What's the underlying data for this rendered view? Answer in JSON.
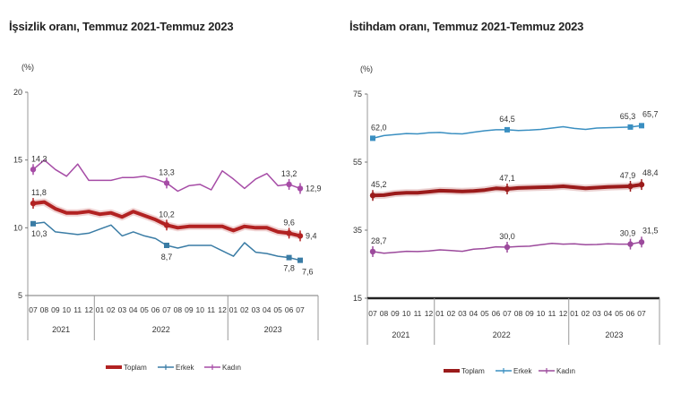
{
  "chart_data": [
    {
      "type": "line",
      "title": "İşsizlik oranı, Temmuz 2021-Temmuz 2023",
      "ylabel": "(%)",
      "xlabel": "",
      "ylim": [
        5,
        20
      ],
      "yticks": [
        5,
        10,
        15,
        20
      ],
      "grid": false,
      "legend_position": "bottom",
      "x": [
        "07",
        "08",
        "09",
        "10",
        "11",
        "12",
        "01",
        "02",
        "03",
        "04",
        "05",
        "06",
        "07",
        "08",
        "09",
        "10",
        "11",
        "12",
        "01",
        "02",
        "03",
        "04",
        "05",
        "06",
        "07"
      ],
      "year_groups": [
        {
          "label": "2021",
          "count": 6
        },
        {
          "label": "2022",
          "count": 12
        },
        {
          "label": "2023",
          "count": 7
        }
      ],
      "series": [
        {
          "name": "Toplam",
          "color": "#b22222",
          "values": [
            11.8,
            11.9,
            11.4,
            11.1,
            11.1,
            11.2,
            11.0,
            11.1,
            10.8,
            11.2,
            10.9,
            10.6,
            10.2,
            10.0,
            10.1,
            10.1,
            10.1,
            10.1,
            9.8,
            10.1,
            10.0,
            10.0,
            9.7,
            9.6,
            9.4
          ],
          "labels": [
            {
              "index": 0,
              "text": "11,8"
            },
            {
              "index": 12,
              "text": "10,2"
            },
            {
              "index": 23,
              "text": "9,6"
            },
            {
              "index": 24,
              "text": "9,4"
            }
          ]
        },
        {
          "name": "Erkek",
          "color": "#3a7ca5",
          "values": [
            10.3,
            10.4,
            9.7,
            9.6,
            9.5,
            9.6,
            9.9,
            10.2,
            9.4,
            9.7,
            9.4,
            9.2,
            8.7,
            8.5,
            8.7,
            8.7,
            8.7,
            8.3,
            7.9,
            8.9,
            8.2,
            8.1,
            7.9,
            7.8,
            7.6
          ],
          "labels": [
            {
              "index": 0,
              "text": "10,3"
            },
            {
              "index": 12,
              "text": "8,7"
            },
            {
              "index": 23,
              "text": "7,8"
            },
            {
              "index": 24,
              "text": "7,6"
            }
          ]
        },
        {
          "name": "Kadın",
          "color": "#a64ca6",
          "values": [
            14.3,
            15.0,
            14.3,
            13.8,
            14.7,
            13.5,
            13.5,
            13.5,
            13.7,
            13.7,
            13.8,
            13.6,
            13.3,
            12.7,
            13.1,
            13.2,
            12.8,
            14.2,
            13.6,
            12.9,
            13.6,
            14.0,
            13.1,
            13.2,
            12.9
          ],
          "labels": [
            {
              "index": 0,
              "text": "14,3"
            },
            {
              "index": 12,
              "text": "13,3"
            },
            {
              "index": 23,
              "text": "13,2"
            },
            {
              "index": 24,
              "text": "12,9"
            }
          ]
        }
      ]
    },
    {
      "type": "line",
      "title": "İstihdam oranı, Temmuz 2021-Temmuz 2023",
      "ylabel": "(%)",
      "xlabel": "",
      "ylim": [
        15,
        75
      ],
      "yticks": [
        15,
        35,
        55,
        75
      ],
      "grid": false,
      "legend_position": "bottom",
      "x": [
        "07",
        "08",
        "09",
        "10",
        "11",
        "12",
        "01",
        "02",
        "03",
        "04",
        "05",
        "06",
        "07",
        "08",
        "09",
        "10",
        "11",
        "12",
        "01",
        "02",
        "03",
        "04",
        "05",
        "06",
        "07"
      ],
      "year_groups": [
        {
          "label": "2021",
          "count": 6
        },
        {
          "label": "2022",
          "count": 12
        },
        {
          "label": "2023",
          "count": 7
        }
      ],
      "series": [
        {
          "name": "Toplam",
          "color": "#9b1b1b",
          "values": [
            45.2,
            45.3,
            45.8,
            46.0,
            46.0,
            46.3,
            46.6,
            46.5,
            46.4,
            46.5,
            46.8,
            47.3,
            47.1,
            47.4,
            47.5,
            47.6,
            47.7,
            47.9,
            47.6,
            47.3,
            47.5,
            47.7,
            47.8,
            47.9,
            48.4
          ],
          "labels": [
            {
              "index": 0,
              "text": "45,2"
            },
            {
              "index": 12,
              "text": "47,1"
            },
            {
              "index": 23,
              "text": "47,9"
            },
            {
              "index": 24,
              "text": "48,4"
            }
          ]
        },
        {
          "name": "Erkek",
          "color": "#3a8fc1",
          "values": [
            62.0,
            62.8,
            63.1,
            63.4,
            63.3,
            63.6,
            63.7,
            63.4,
            63.3,
            63.8,
            64.2,
            64.5,
            64.5,
            64.3,
            64.4,
            64.6,
            65.0,
            65.4,
            64.9,
            64.6,
            65.0,
            65.1,
            65.2,
            65.3,
            65.7
          ],
          "labels": [
            {
              "index": 0,
              "text": "62,0"
            },
            {
              "index": 12,
              "text": "64,5"
            },
            {
              "index": 23,
              "text": "65,3"
            },
            {
              "index": 24,
              "text": "65,7"
            }
          ]
        },
        {
          "name": "Kadın",
          "color": "#9c4a9c",
          "values": [
            28.7,
            28.2,
            28.5,
            28.8,
            28.7,
            28.9,
            29.2,
            29.0,
            28.8,
            29.4,
            29.6,
            30.1,
            30.0,
            30.2,
            30.3,
            30.7,
            31.1,
            30.9,
            31.0,
            30.7,
            30.8,
            31.0,
            30.9,
            30.9,
            31.5
          ],
          "labels": [
            {
              "index": 0,
              "text": "28,7"
            },
            {
              "index": 12,
              "text": "30,0"
            },
            {
              "index": 23,
              "text": "30,9"
            },
            {
              "index": 24,
              "text": "31,5"
            }
          ]
        }
      ]
    }
  ]
}
